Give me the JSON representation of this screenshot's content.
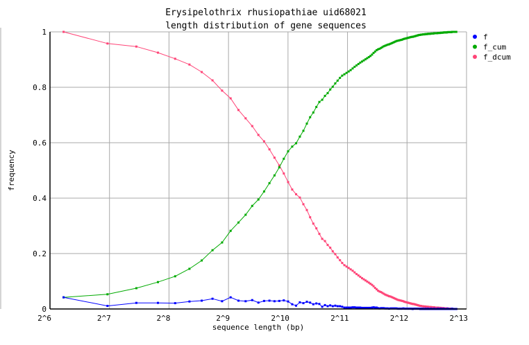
{
  "chart_data": {
    "type": "line",
    "title": [
      "Erysipelothrix rhusiopathiae uid68021",
      "length distribution of gene sequences"
    ],
    "xlabel": "sequence length (bp)",
    "ylabel": "frequency",
    "x_scale": "log2",
    "xlim": [
      64,
      8192
    ],
    "ylim": [
      0,
      1
    ],
    "x_ticks": [
      "2^6",
      "2^7",
      "2^8",
      "2^9",
      "2^10",
      "2^11",
      "2^12",
      "2^13"
    ],
    "y_ticks": [
      "0",
      "0.2",
      "0.4",
      "0.6",
      "0.8",
      "1"
    ],
    "grid": true,
    "legend_position": "right",
    "x": [
      75,
      125,
      175,
      225,
      275,
      325,
      375,
      425,
      475,
      525,
      575,
      625,
      675,
      725,
      775,
      825,
      875,
      925,
      975,
      1025,
      1075,
      1125,
      1175,
      1225,
      1275,
      1325,
      1375,
      1425,
      1475,
      1525,
      1575,
      1625,
      1675,
      1725,
      1775,
      1825,
      1875,
      1925,
      1975,
      2025,
      2075,
      2125,
      2175,
      2225,
      2275,
      2325,
      2375,
      2425,
      2475,
      2525,
      2575,
      2625,
      2675,
      2725,
      2775,
      2825,
      2875,
      2925,
      2975,
      3025,
      3075,
      3125,
      3175,
      3225,
      3275,
      3325,
      3375,
      3425,
      3475,
      3525,
      3575,
      3625,
      3675,
      3725,
      3775,
      3825,
      3875,
      3925,
      3975,
      4025,
      4075,
      4125,
      4175,
      4225,
      4275,
      4325,
      4375,
      4425,
      4475,
      4525,
      4575,
      4625,
      4675,
      4725,
      4775,
      4825,
      4875,
      4925,
      4975,
      5025,
      5075,
      5125,
      5175,
      5225,
      5275,
      5325,
      5375,
      5425,
      5475,
      5525,
      5575,
      5625,
      5675,
      5725,
      5775,
      5825,
      5875,
      5925,
      5975,
      6025,
      6075,
      6125,
      6175,
      6225,
      6275,
      6325,
      6375,
      6425,
      6475,
      6525,
      6575,
      6625,
      6675,
      6725,
      6775,
      6825,
      6875,
      6925,
      6975,
      7025,
      7075,
      7125,
      7175,
      7225,
      7275
    ],
    "series": [
      {
        "name": "f",
        "color": "#0000ff",
        "values": [
          0.042,
          0.011,
          0.022,
          0.022,
          0.021,
          0.027,
          0.03,
          0.037,
          0.028,
          0.042,
          0.03,
          0.028,
          0.032,
          0.023,
          0.029,
          0.03,
          0.028,
          0.029,
          0.031,
          0.027,
          0.017,
          0.012,
          0.024,
          0.021,
          0.026,
          0.023,
          0.017,
          0.02,
          0.018,
          0.008,
          0.014,
          0.01,
          0.013,
          0.01,
          0.012,
          0.01,
          0.01,
          0.008,
          0.005,
          0.005,
          0.005,
          0.005,
          0.006,
          0.006,
          0.005,
          0.005,
          0.005,
          0.004,
          0.004,
          0.004,
          0.004,
          0.004,
          0.004,
          0.005,
          0.006,
          0.005,
          0.005,
          0.003,
          0.002,
          0.003,
          0.003,
          0.003,
          0.002,
          0.002,
          0.002,
          0.001,
          0.002,
          0.002,
          0.002,
          0.002,
          0.002,
          0.002,
          0.001,
          0.001,
          0.001,
          0.001,
          0.001,
          0.002,
          0.001,
          0.001,
          0.001,
          0.001,
          0.001,
          0.001,
          0.001,
          0.001,
          0,
          0.001,
          0.001,
          0.001,
          0.001,
          0.001,
          0.001,
          0.001,
          0,
          0.001,
          0,
          0.001,
          0,
          0,
          0.001,
          0,
          0,
          0.001,
          0,
          0,
          0,
          0.001,
          0,
          0,
          0,
          0.001,
          0,
          0,
          0,
          0,
          0.001,
          0,
          0,
          0,
          0.001,
          0,
          0,
          0,
          0.001,
          0,
          0,
          0,
          0,
          0,
          0.001,
          0,
          0,
          0,
          0,
          0,
          0,
          0.001,
          0,
          0,
          0,
          0,
          0,
          0,
          0
        ]
      },
      {
        "name": "f_cum",
        "color": "#00aa00",
        "values": [
          0.042,
          0.053,
          0.075,
          0.097,
          0.118,
          0.145,
          0.175,
          0.212,
          0.24,
          0.282,
          0.312,
          0.34,
          0.372,
          0.395,
          0.424,
          0.454,
          0.482,
          0.511,
          0.542,
          0.569,
          0.586,
          0.598,
          0.622,
          0.643,
          0.669,
          0.692,
          0.709,
          0.729,
          0.747,
          0.755,
          0.769,
          0.779,
          0.792,
          0.802,
          0.814,
          0.824,
          0.834,
          0.842,
          0.847,
          0.852,
          0.857,
          0.862,
          0.868,
          0.874,
          0.879,
          0.884,
          0.889,
          0.893,
          0.897,
          0.901,
          0.905,
          0.909,
          0.913,
          0.918,
          0.924,
          0.929,
          0.934,
          0.937,
          0.939,
          0.942,
          0.945,
          0.948,
          0.95,
          0.952,
          0.954,
          0.955,
          0.957,
          0.959,
          0.961,
          0.963,
          0.965,
          0.967,
          0.968,
          0.969,
          0.97,
          0.971,
          0.972,
          0.974,
          0.975,
          0.976,
          0.977,
          0.978,
          0.979,
          0.98,
          0.981,
          0.982,
          0.982,
          0.983,
          0.984,
          0.985,
          0.986,
          0.987,
          0.988,
          0.989,
          0.989,
          0.99,
          0.99,
          0.991,
          0.991,
          0.991,
          0.992,
          0.992,
          0.992,
          0.993,
          0.993,
          0.993,
          0.993,
          0.994,
          0.994,
          0.994,
          0.994,
          0.995,
          0.995,
          0.995,
          0.995,
          0.995,
          0.996,
          0.996,
          0.996,
          0.996,
          0.997,
          0.997,
          0.997,
          0.997,
          0.998,
          0.998,
          0.998,
          0.998,
          0.998,
          0.998,
          0.999,
          0.999,
          0.999,
          0.999,
          0.999,
          0.999,
          0.999,
          1,
          1,
          1,
          1,
          1,
          1,
          1,
          1
        ]
      },
      {
        "name": "f_dcum",
        "color": "#ff4477",
        "values": [
          1,
          0.958,
          0.947,
          0.925,
          0.903,
          0.882,
          0.855,
          0.825,
          0.788,
          0.76,
          0.718,
          0.688,
          0.66,
          0.628,
          0.605,
          0.576,
          0.546,
          0.518,
          0.489,
          0.458,
          0.431,
          0.414,
          0.402,
          0.378,
          0.357,
          0.331,
          0.308,
          0.291,
          0.271,
          0.253,
          0.245,
          0.231,
          0.221,
          0.208,
          0.198,
          0.186,
          0.176,
          0.166,
          0.158,
          0.153,
          0.148,
          0.143,
          0.138,
          0.132,
          0.126,
          0.121,
          0.116,
          0.111,
          0.107,
          0.103,
          0.099,
          0.095,
          0.091,
          0.087,
          0.082,
          0.076,
          0.071,
          0.066,
          0.063,
          0.061,
          0.058,
          0.055,
          0.052,
          0.05,
          0.048,
          0.046,
          0.045,
          0.043,
          0.041,
          0.039,
          0.037,
          0.035,
          0.033,
          0.032,
          0.031,
          0.03,
          0.029,
          0.028,
          0.026,
          0.025,
          0.024,
          0.023,
          0.022,
          0.021,
          0.02,
          0.019,
          0.018,
          0.018,
          0.017,
          0.016,
          0.015,
          0.014,
          0.013,
          0.012,
          0.011,
          0.011,
          0.01,
          0.01,
          0.009,
          0.009,
          0.009,
          0.008,
          0.008,
          0.008,
          0.007,
          0.007,
          0.007,
          0.007,
          0.006,
          0.006,
          0.006,
          0.006,
          0.005,
          0.005,
          0.005,
          0.005,
          0.005,
          0.004,
          0.004,
          0.004,
          0.004,
          0.003,
          0.003,
          0.003,
          0.003,
          0.002,
          0.002,
          0.002,
          0.002,
          0.002,
          0.002,
          0.001,
          0.001,
          0.001,
          0.001,
          0.001,
          0.001,
          0.001,
          0,
          0,
          0,
          0,
          0,
          0,
          0
        ]
      }
    ]
  }
}
